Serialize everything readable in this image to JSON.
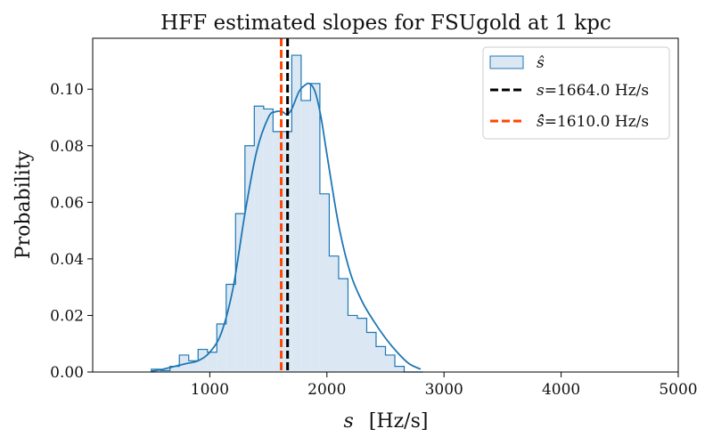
{
  "chart_data": {
    "type": "histogram",
    "title": "HFF estimated slopes for FSUgold at 1 kpc",
    "xlabel_symbol": "s",
    "xlabel_unit": "[Hz/s]",
    "ylabel": "Probability",
    "xlim": [
      0,
      5000
    ],
    "ylim": [
      0,
      0.118
    ],
    "xticks": [
      1000,
      2000,
      3000,
      4000,
      5000
    ],
    "xtick_labels": [
      "1000",
      "2000",
      "3000",
      "4000",
      "5000"
    ],
    "yticks": [
      0.0,
      0.02,
      0.04,
      0.06,
      0.08,
      0.1
    ],
    "ytick_labels": [
      "0.00",
      "0.02",
      "0.04",
      "0.06",
      "0.08",
      "0.10"
    ],
    "bin_edges": [
      500,
      580,
      660,
      740,
      820,
      900,
      980,
      1060,
      1140,
      1220,
      1300,
      1380,
      1460,
      1540,
      1620,
      1700,
      1780,
      1860,
      1940,
      2020,
      2100,
      2180,
      2260,
      2340,
      2420,
      2500,
      2580,
      2660,
      2740,
      2820
    ],
    "values": [
      0.001,
      0.0005,
      0.002,
      0.006,
      0.004,
      0.008,
      0.007,
      0.017,
      0.031,
      0.056,
      0.08,
      0.094,
      0.093,
      0.085,
      0.085,
      0.112,
      0.096,
      0.102,
      0.063,
      0.041,
      0.033,
      0.02,
      0.019,
      0.014,
      0.009,
      0.006,
      0.002,
      0.0,
      0.0
    ],
    "kde": {
      "x": [
        500,
        600,
        700,
        800,
        900,
        1000,
        1100,
        1200,
        1300,
        1400,
        1500,
        1560,
        1620,
        1660,
        1700,
        1760,
        1800,
        1850,
        1900,
        1950,
        2000,
        2100,
        2200,
        2300,
        2400,
        2500,
        2600,
        2700,
        2800
      ],
      "y": [
        0.0003,
        0.001,
        0.002,
        0.003,
        0.004,
        0.007,
        0.014,
        0.03,
        0.056,
        0.078,
        0.09,
        0.092,
        0.092,
        0.091,
        0.093,
        0.099,
        0.101,
        0.102,
        0.099,
        0.09,
        0.077,
        0.052,
        0.035,
        0.025,
        0.018,
        0.012,
        0.007,
        0.003,
        0.001
      ]
    },
    "vlines": [
      {
        "x": 1664.0,
        "color": "#000000",
        "label": "=1664.0 Hz/s",
        "symbol": "s"
      },
      {
        "x": 1610.0,
        "color": "#ff4500",
        "label": "=1610.0 Hz/s",
        "symbol": "ŝ̂"
      }
    ],
    "legend": {
      "position": "top-right",
      "entries": [
        {
          "symbol": "ŝ",
          "label": ""
        },
        {
          "symbol": "s",
          "label": "=1664.0 Hz/s"
        },
        {
          "symbol": "ŝ̂",
          "label": "=1610.0 Hz/s"
        }
      ]
    },
    "colors": {
      "hist_line": "#1f77b4",
      "hist_fill": "#dbe8f3",
      "line_s": "#000000",
      "line_shat": "#ff4500"
    }
  }
}
